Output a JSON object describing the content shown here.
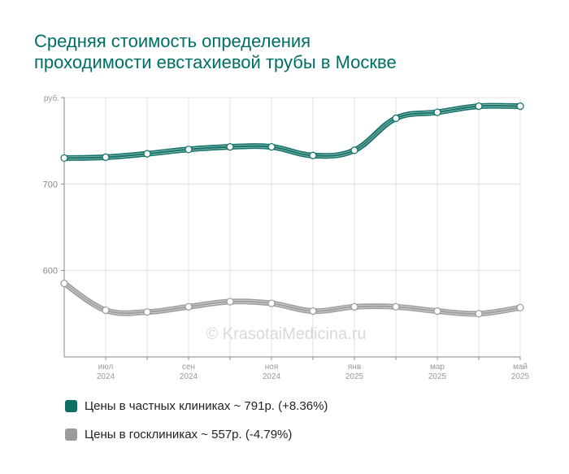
{
  "colors": {
    "private": "#0d6e64",
    "public": "#9b9b9b",
    "title": "#006f63"
  },
  "chart_data": {
    "type": "line",
    "title": "Средняя стоимость определения\nпроходимости евстахиевой трубы в Москве",
    "ylabel": "руб.",
    "ylim": [
      500,
      800
    ],
    "yticks": [
      600,
      700
    ],
    "xticks": [
      {
        "month": "июл",
        "year": "2024",
        "index": 1
      },
      {
        "month": "сен",
        "year": "2024",
        "index": 3
      },
      {
        "month": "ноя",
        "year": "2024",
        "index": 5
      },
      {
        "month": "янв",
        "year": "2025",
        "index": 7
      },
      {
        "month": "мар",
        "year": "2025",
        "index": 9
      },
      {
        "month": "май",
        "year": "2025",
        "index": 11
      }
    ],
    "x": [
      "2024-06",
      "2024-07",
      "2024-08",
      "2024-09",
      "2024-10",
      "2024-11",
      "2024-12",
      "2025-01",
      "2025-02",
      "2025-03",
      "2025-04",
      "2025-05"
    ],
    "grid": true,
    "legend": "bottom",
    "watermark": "© KrasotaiMedicina.ru",
    "series": [
      {
        "name": "Цены в частных клиниках ~ 791р. (+8.36%)",
        "color": "#0d6e64",
        "values": [
          730,
          731,
          735,
          740,
          743,
          743,
          733,
          739,
          776,
          783,
          790,
          790
        ]
      },
      {
        "name": "Цены в госклиниках ~ 557р. (-4.79%)",
        "color": "#9b9b9b",
        "values": [
          585,
          554,
          552,
          558,
          564,
          562,
          553,
          558,
          558,
          553,
          550,
          557
        ]
      }
    ]
  }
}
